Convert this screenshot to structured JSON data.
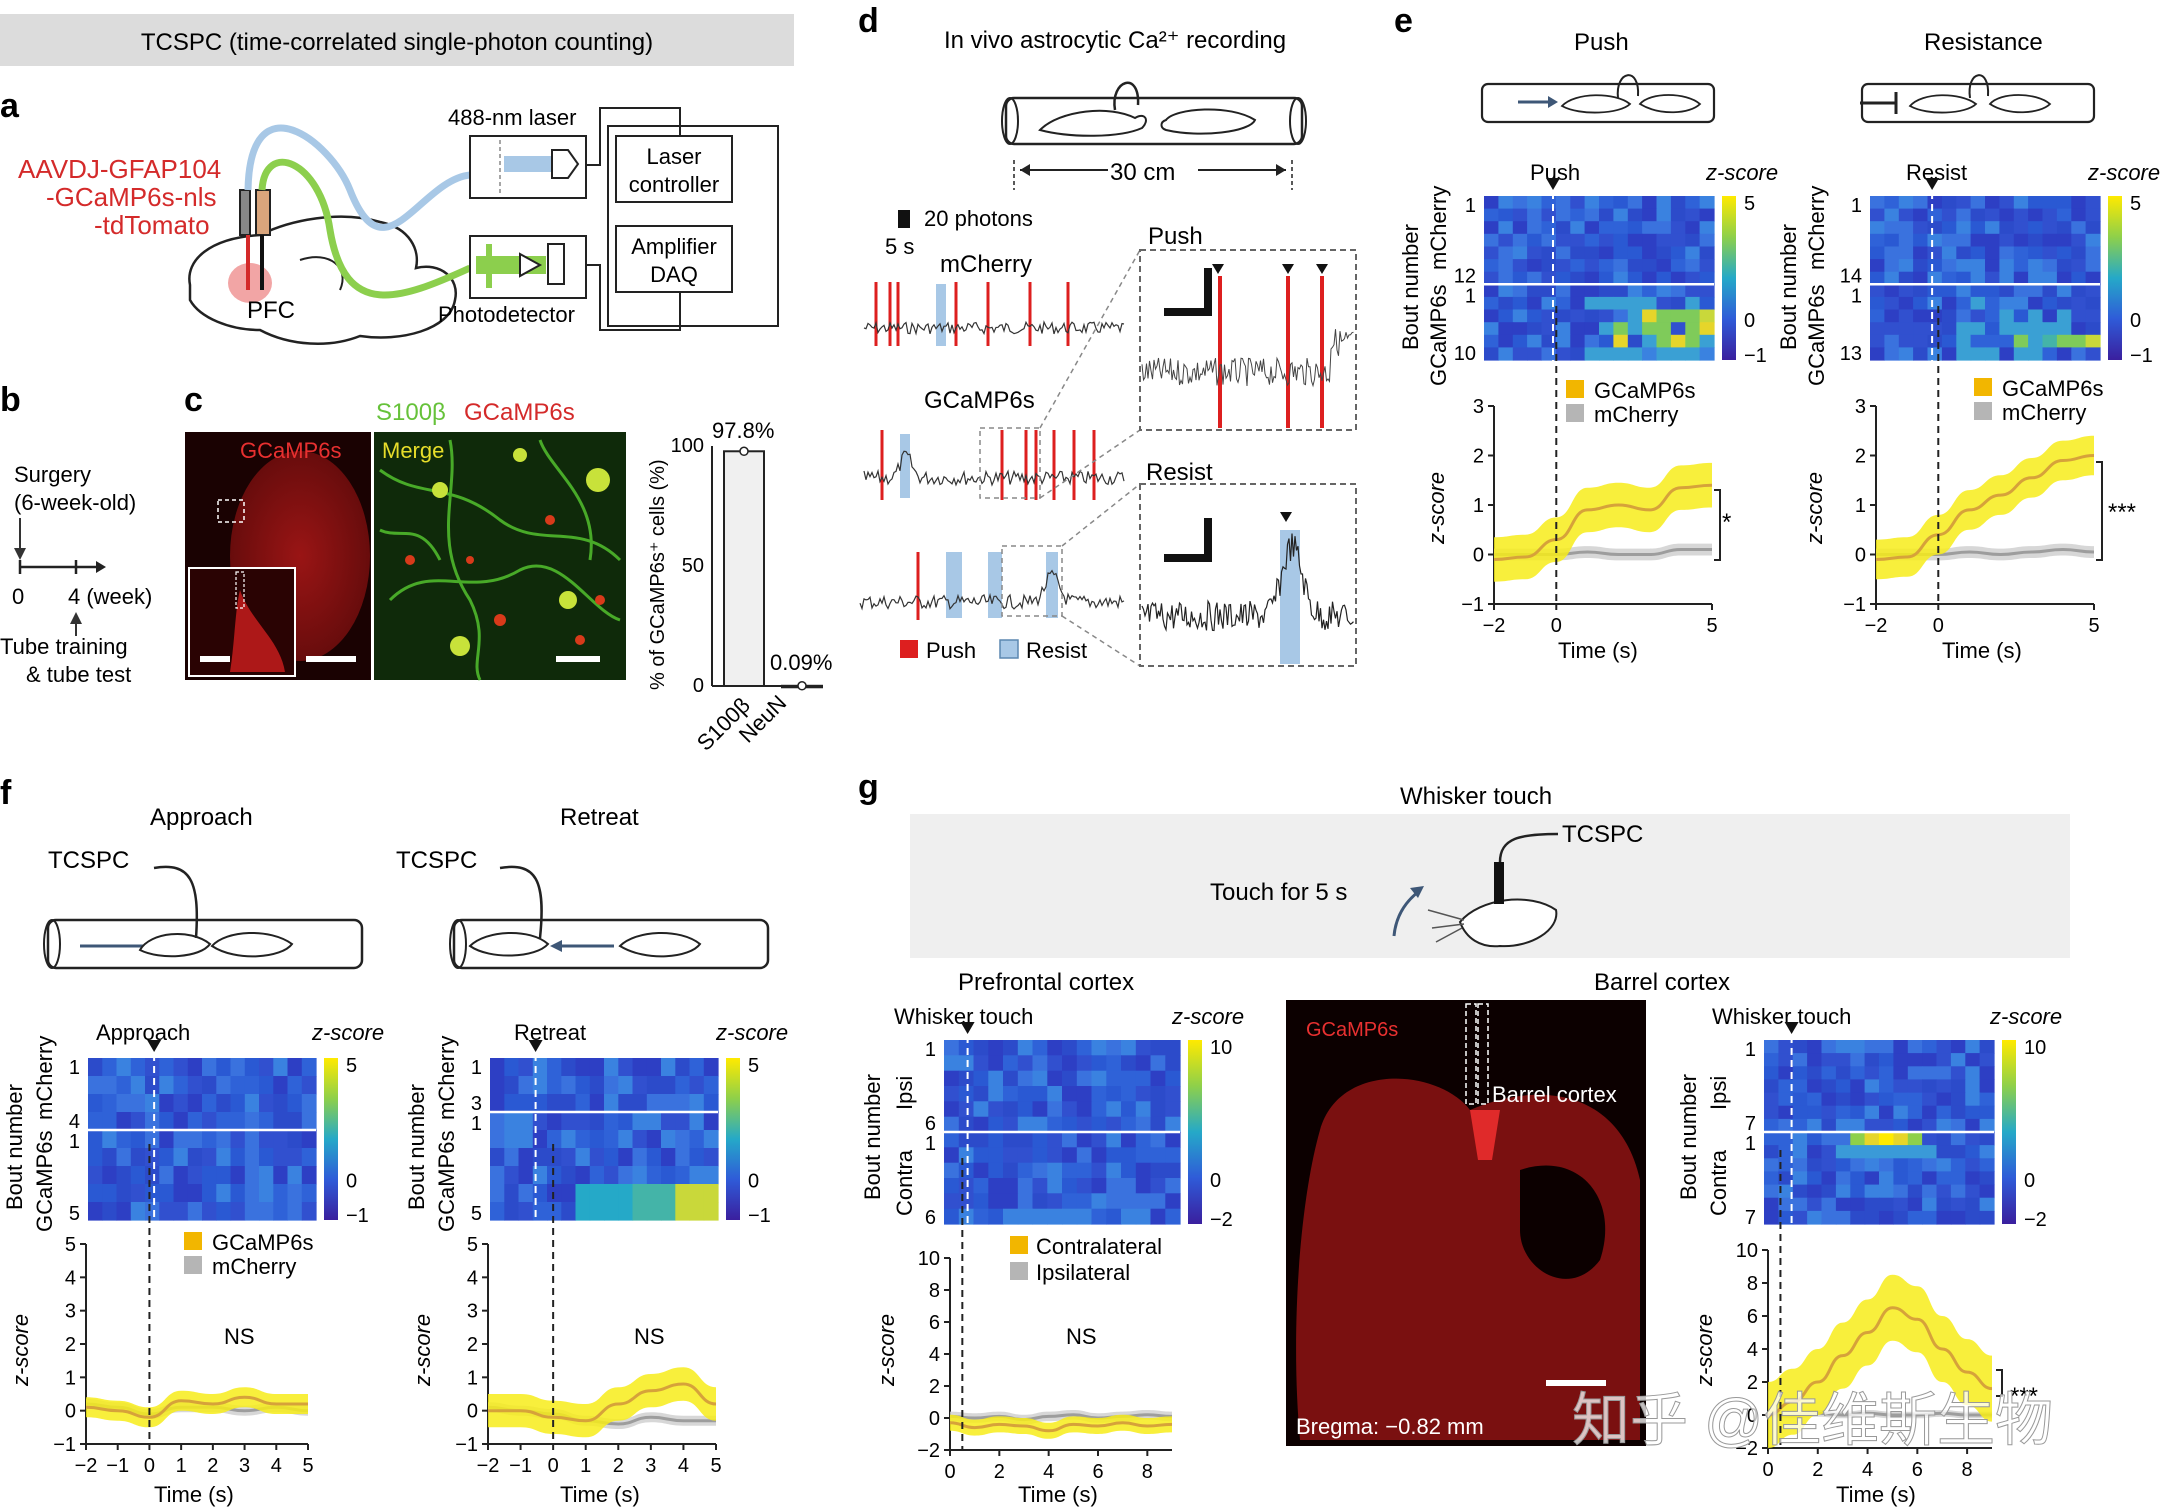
{
  "title_banner": "TCSPC (time-correlated single-photon counting)",
  "panels": {
    "a": {
      "label": "a",
      "virus_lines": [
        "AAVDJ-GFAP104",
        "-GCaMP6s-nls",
        "-tdTomato"
      ],
      "region": "PFC",
      "laser": "488-nm laser",
      "controller": [
        "Laser",
        "controller"
      ],
      "daq": [
        "Amplifier",
        "DAQ"
      ],
      "detector": "Photodetector"
    },
    "b": {
      "label": "b",
      "surgery": [
        "Surgery",
        "(6-week-old)"
      ],
      "t0": "0",
      "t4": "4 (week)",
      "training": [
        "Tube training",
        "& tube test"
      ]
    },
    "c": {
      "label": "c",
      "header_s100": "S100β",
      "header_gcamp": "GCaMP6s",
      "img1_label": "GCaMP6s",
      "img2_label": "Merge",
      "ylabel": "% of GCaMP6s⁺ cells (%)",
      "bar_values_text": [
        "97.8%",
        "0.09%"
      ]
    },
    "d": {
      "label": "d",
      "title": "In vivo astrocytic Ca²⁺ recording",
      "distance": "30 cm",
      "scale_photons": "20 photons",
      "scale_time": "5 s",
      "trace1": "mCherry",
      "trace2": "GCaMP6s",
      "zoom1": "Push",
      "zoom2": "Resist",
      "legend_push": "Push",
      "legend_resist": "Resist"
    },
    "e": {
      "label": "e",
      "cartoon1": "Push",
      "cartoon2": "Resistance",
      "heat1_event": "Push",
      "heat2_event": "Resist",
      "zscore": "z-score",
      "ylabel_heat": "Bout number",
      "group_top": "mCherry",
      "group_bottom": "GCaMP6s",
      "heat1_rows": [
        "1",
        "12",
        "1",
        "10"
      ],
      "heat2_rows": [
        "1",
        "14",
        "1",
        "13"
      ],
      "cbar_ticks": [
        "5",
        "0",
        "−1"
      ],
      "legend": [
        "GCaMP6s",
        "mCherry"
      ],
      "ylabel_line": "z-score",
      "xlabel": "Time (s)",
      "xticks": [
        "−2",
        "0",
        "5"
      ],
      "yticks": [
        "3",
        "2",
        "1",
        "0",
        "−1"
      ],
      "sig1": "*",
      "sig2": "***"
    },
    "f": {
      "label": "f",
      "title1": "Approach",
      "title2": "Retreat",
      "tcspc": "TCSPC",
      "heat1_event": "Approach",
      "heat2_event": "Retreat",
      "zscore": "z-score",
      "heat1_rows": [
        "1",
        "4",
        "1",
        "5"
      ],
      "heat2_rows": [
        "1",
        "3",
        "1",
        "5"
      ],
      "cbar_ticks": [
        "5",
        "0",
        "−1"
      ],
      "legend": [
        "GCaMP6s",
        "mCherry"
      ],
      "ylabel_heat": "Bout number",
      "group_top": "mCherry",
      "group_bottom": "GCaMP6s",
      "ylabel_line": "z-score",
      "xlabel": "Time (s)",
      "xticks": [
        "−2",
        "−1",
        "0",
        "1",
        "2",
        "3",
        "4",
        "5"
      ],
      "yticks": [
        "5",
        "4",
        "3",
        "2",
        "1",
        "0",
        "−1"
      ],
      "ns": "NS"
    },
    "g": {
      "label": "g",
      "title": "Whisker touch",
      "tcspc": "TCSPC",
      "touch": "Touch for 5 s",
      "pfc_title": "Prefrontal cortex",
      "barrel_title": "Barrel cortex",
      "event": "Whisker touch",
      "zscore": "z-score",
      "group_top": "Ipsi",
      "group_bottom": "Contra",
      "ylabel_heat": "Bout number",
      "heat1_rows": [
        "1",
        "6",
        "1",
        "6"
      ],
      "heat2_rows": [
        "1",
        "7",
        "1",
        "7"
      ],
      "cbar_ticks": [
        "10",
        "0",
        "−2"
      ],
      "legend": [
        "Contralateral",
        "Ipsilateral"
      ],
      "img_label": "GCaMP6s",
      "img_region": "Barrel cortex",
      "bregma": "Bregma: −0.82 mm",
      "ylabel_line": "z-score",
      "xlabel": "Time (s)",
      "xticks": [
        "0",
        "2",
        "4",
        "6",
        "8"
      ],
      "yticks": [
        "10",
        "8",
        "6",
        "4",
        "2",
        "0",
        "−2"
      ],
      "ns": "NS",
      "sig": "***"
    }
  },
  "watermark": "知乎 @佳维斯生物",
  "colors": {
    "gcamp": "#f5e600",
    "mcherry": "#b5b5b5",
    "push": "#dd1f1f",
    "resist": "#a8c8e6",
    "virus": "#d42a2a",
    "s100": "#66c23a"
  },
  "chart_data": [
    {
      "type": "bar",
      "panel": "c",
      "categories": [
        "S100β",
        "NeuN"
      ],
      "values": [
        97.8,
        0.09
      ],
      "ylim": [
        0,
        100
      ],
      "ylabel": "% of GCaMP6s⁺ cells (%)"
    },
    {
      "type": "line",
      "panel": "e-push",
      "x": [
        -2,
        -1,
        0,
        1,
        2,
        3,
        4,
        5
      ],
      "series": [
        {
          "name": "GCaMP6s",
          "values": [
            -0.1,
            -0.05,
            0.3,
            0.9,
            1.0,
            0.9,
            1.35,
            1.4
          ]
        },
        {
          "name": "mCherry",
          "values": [
            0,
            0,
            0,
            0.05,
            0,
            0,
            0.1,
            0.1
          ]
        }
      ],
      "ylim": [
        -1,
        3
      ],
      "xlabel": "Time (s)",
      "ylabel": "z-score"
    },
    {
      "type": "line",
      "panel": "e-resist",
      "x": [
        -2,
        -1,
        0,
        1,
        2,
        3,
        4,
        5
      ],
      "series": [
        {
          "name": "GCaMP6s",
          "values": [
            -0.1,
            -0.05,
            0.4,
            0.9,
            1.2,
            1.55,
            1.9,
            2.0
          ]
        },
        {
          "name": "mCherry",
          "values": [
            0,
            0,
            0,
            0.05,
            0,
            0.05,
            0.1,
            0.05
          ]
        }
      ],
      "ylim": [
        -1,
        3
      ],
      "xlabel": "Time (s)",
      "ylabel": "z-score"
    },
    {
      "type": "line",
      "panel": "f-approach",
      "x": [
        -2,
        -1,
        0,
        1,
        2,
        3,
        4,
        5
      ],
      "series": [
        {
          "name": "GCaMP6s",
          "values": [
            0.1,
            0,
            -0.2,
            0.3,
            0.2,
            0.4,
            0.2,
            0.2
          ]
        },
        {
          "name": "mCherry",
          "values": [
            0.2,
            0.1,
            -0.1,
            0.1,
            0.1,
            0,
            0.1,
            0
          ]
        }
      ],
      "ylim": [
        -1,
        5
      ],
      "xlabel": "Time (s)",
      "ylabel": "z-score"
    },
    {
      "type": "line",
      "panel": "f-retreat",
      "x": [
        -2,
        -1,
        0,
        1,
        2,
        3,
        4,
        5
      ],
      "series": [
        {
          "name": "GCaMP6s",
          "values": [
            0,
            0,
            -0.2,
            -0.3,
            0.2,
            0.6,
            0.8,
            0.2
          ]
        },
        {
          "name": "mCherry",
          "values": [
            0.1,
            0,
            -0.1,
            -0.3,
            -0.4,
            -0.2,
            -0.3,
            -0.3
          ]
        }
      ],
      "ylim": [
        -1,
        5
      ],
      "xlabel": "Time (s)",
      "ylabel": "z-score"
    },
    {
      "type": "line",
      "panel": "g-prefrontal",
      "x": [
        0,
        1,
        2,
        3,
        4,
        5,
        6,
        7,
        8,
        9
      ],
      "series": [
        {
          "name": "Contralateral",
          "values": [
            -0.3,
            -0.6,
            -0.4,
            -0.5,
            -0.8,
            -0.4,
            -0.5,
            -0.3,
            -0.5,
            -0.4
          ]
        },
        {
          "name": "Ipsilateral",
          "values": [
            0.1,
            0,
            0.1,
            -0.1,
            0.1,
            0.2,
            0,
            0.1,
            0.2,
            0.1
          ]
        }
      ],
      "ylim": [
        -2,
        10
      ],
      "xlabel": "Time (s)",
      "ylabel": "z-score"
    },
    {
      "type": "line",
      "panel": "g-barrel",
      "x": [
        0,
        1,
        2,
        3,
        4,
        5,
        6,
        7,
        8,
        9
      ],
      "series": [
        {
          "name": "Contralateral",
          "values": [
            0,
            0.8,
            2.0,
            3.6,
            5.0,
            6.5,
            5.8,
            4.0,
            2.6,
            1.6
          ]
        },
        {
          "name": "Ipsilateral",
          "values": [
            0,
            0,
            0.1,
            0,
            0.1,
            0,
            0,
            0.1,
            0,
            0
          ]
        }
      ],
      "ylim": [
        -2,
        10
      ],
      "xlabel": "Time (s)",
      "ylabel": "z-score"
    }
  ]
}
